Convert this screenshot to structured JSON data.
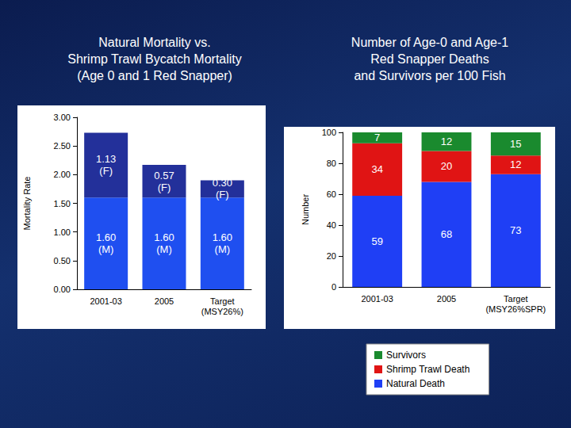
{
  "chart_data": [
    {
      "type": "bar",
      "title": "Natural Mortality vs.\nShrimp Trawl Bycatch Mortality\n(Age 0 and 1 Red Snapper)",
      "y_label": "Mortality Rate",
      "categories": [
        "2001-03",
        "2005",
        "Target\n(MSY26%)"
      ],
      "series": [
        {
          "color": "#1f4ff0",
          "values": [
            1.6,
            1.6,
            1.6
          ],
          "value_labels": [
            "1.60\n(M)",
            "1.60\n(M)",
            "1.60\n(M)"
          ]
        },
        {
          "color": "#23309a",
          "values": [
            1.13,
            0.57,
            0.3
          ],
          "value_labels": [
            "1.13\n(F)",
            "0.57\n(F)",
            "0.30\n(F)"
          ]
        }
      ],
      "ylim": [
        0,
        3
      ],
      "yticks": [
        {
          "value": 0,
          "label": "0.00"
        },
        {
          "value": 0.5,
          "label": "0.50"
        },
        {
          "value": 1,
          "label": "1.00"
        },
        {
          "value": 1.5,
          "label": "1.50"
        },
        {
          "value": 2,
          "label": "2.00"
        },
        {
          "value": 2.5,
          "label": "2.50"
        },
        {
          "value": 3,
          "label": "3.00"
        }
      ],
      "stacked": true,
      "data_labels": true,
      "grid": false
    },
    {
      "type": "bar",
      "title": "Number of Age-0 and Age-1\nRed Snapper Deaths\nand Survivors per 100 Fish",
      "y_label": "Number",
      "categories": [
        "2001-03",
        "2005",
        "Target\n(MSY26%SPR)"
      ],
      "series": [
        {
          "name": "Natural Death",
          "color": "#1f3ff5",
          "values": [
            59,
            68,
            73
          ]
        },
        {
          "name": "Shrimp Trawl Death",
          "color": "#e01414",
          "values": [
            34,
            20,
            12
          ]
        },
        {
          "name": "Survivors",
          "color": "#1a8a2e",
          "values": [
            7,
            12,
            15
          ]
        }
      ],
      "ylim": [
        0,
        100
      ],
      "yticks": [
        0,
        20,
        40,
        60,
        80,
        100
      ],
      "stacked": true,
      "data_labels": true,
      "grid": false,
      "legend": "bottom"
    }
  ]
}
